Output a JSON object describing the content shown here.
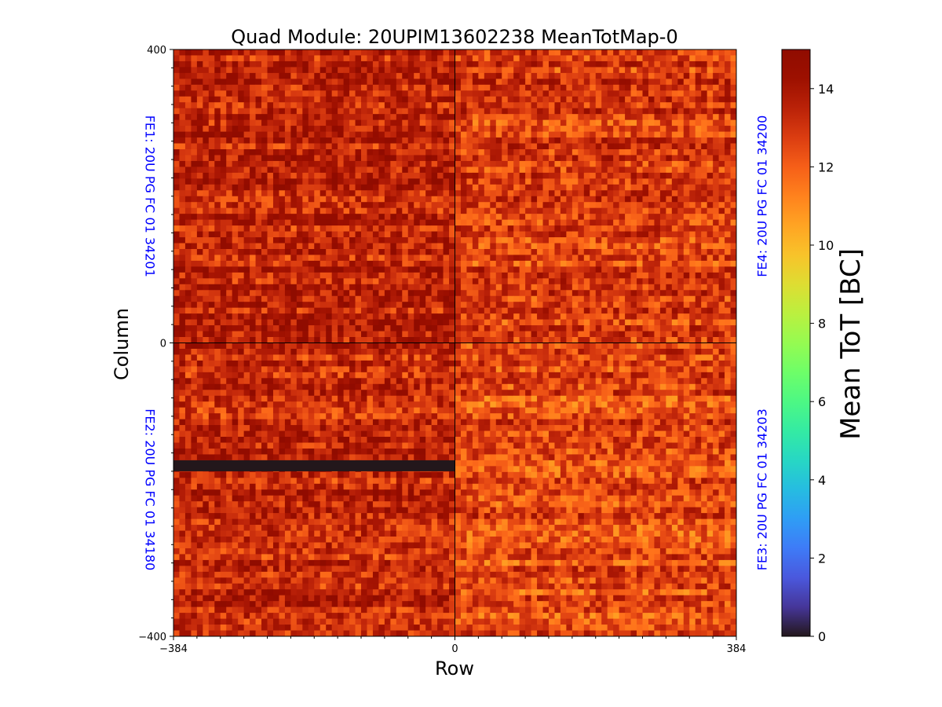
{
  "chart_data": {
    "type": "heatmap",
    "title": "Quad Module: 20UPIM13602238 MeanTotMap-0",
    "xlabel": "Row",
    "ylabel": "Column",
    "xlim": [
      -384,
      384
    ],
    "ylim": [
      -400,
      400
    ],
    "x_ticks": [
      "−384",
      "0",
      "384"
    ],
    "y_ticks": [
      "400",
      "0",
      "−400"
    ],
    "colorbar": {
      "label": "Mean ToT [BC]",
      "range": [
        0,
        15
      ],
      "ticks": [
        "0",
        "2",
        "4",
        "6",
        "8",
        "10",
        "12",
        "14"
      ],
      "colormap": "turbo"
    },
    "quadrants": [
      {
        "label": "FE1: 20U PG FC 01 34201",
        "x_range": [
          -384,
          0
        ],
        "y_range": [
          0,
          400
        ],
        "typical_value": 13.5
      },
      {
        "label": "FE4: 20U PG FC 01 34200",
        "x_range": [
          0,
          384
        ],
        "y_range": [
          0,
          400
        ],
        "typical_value": 12.8
      },
      {
        "label": "FE2: 20U PG FC 01 34180",
        "x_range": [
          -384,
          0
        ],
        "y_range": [
          -400,
          0
        ],
        "typical_value": 13.3
      },
      {
        "label": "FE3: 20U PG FC 01 34203",
        "x_range": [
          0,
          384
        ],
        "y_range": [
          -400,
          0
        ],
        "typical_value": 12.5
      }
    ],
    "dead_band": {
      "x_range": [
        -384,
        0
      ],
      "y_range": [
        -175,
        -160
      ],
      "value": 0
    },
    "grid": false,
    "legend": "none"
  }
}
